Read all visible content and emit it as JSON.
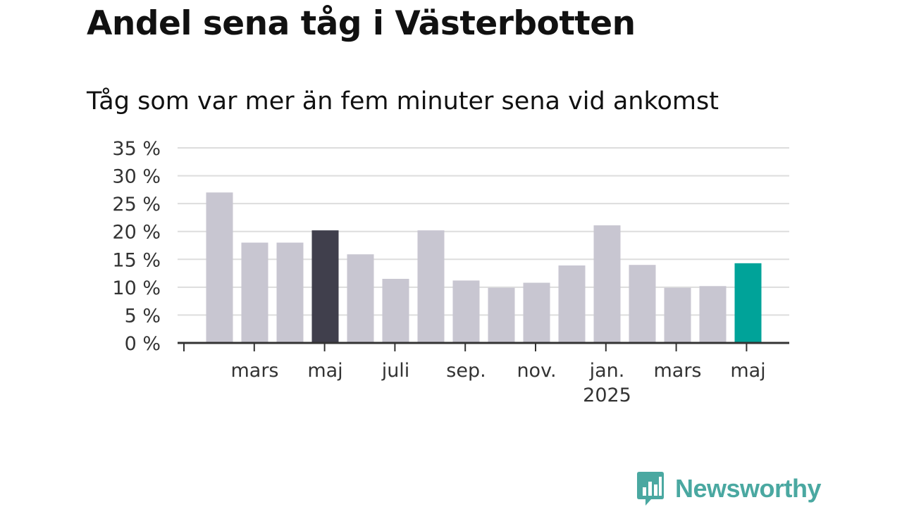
{
  "chart_data": {
    "type": "bar",
    "title": "Andel sena tåg i Västerbotten",
    "subtitle": "Tåg som var mer än fem minuter sena vid ankomst",
    "categories": [
      "2024-02",
      "2024-03",
      "2024-04",
      "2024-05",
      "2024-06",
      "2024-07",
      "2024-08",
      "2024-09",
      "2024-10",
      "2024-11",
      "2024-12",
      "2025-01",
      "2025-02",
      "2025-03",
      "2025-04",
      "2025-05"
    ],
    "values": [
      27.0,
      18.0,
      18.0,
      20.2,
      15.9,
      11.5,
      20.2,
      11.2,
      9.9,
      10.8,
      13.9,
      21.1,
      14.0,
      9.9,
      10.2,
      14.3
    ],
    "ylim": [
      0,
      35
    ],
    "yticks": [
      0,
      5,
      10,
      15,
      20,
      25,
      30,
      35
    ],
    "ytick_labels": [
      "0 %",
      "5 %",
      "10 %",
      "15 %",
      "20 %",
      "25 %",
      "30 %",
      "35 %"
    ],
    "xtick_labels": [
      {
        "category_index": 1,
        "lines": [
          "mars"
        ]
      },
      {
        "category_index": 3,
        "lines": [
          "maj"
        ]
      },
      {
        "category_index": 5,
        "lines": [
          "juli"
        ]
      },
      {
        "category_index": 7,
        "lines": [
          "sep."
        ]
      },
      {
        "category_index": 9,
        "lines": [
          "nov."
        ]
      },
      {
        "category_index": 11,
        "lines": [
          "jan.",
          "2025"
        ]
      },
      {
        "category_index": 13,
        "lines": [
          "mars"
        ]
      },
      {
        "category_index": 15,
        "lines": [
          "maj"
        ]
      }
    ],
    "xlabel": "",
    "ylabel": "",
    "grid": true,
    "legend": "none",
    "highlights": {
      "3": "#403f4c",
      "15": "#00a399"
    },
    "colors": {
      "bar": "#c8c6d1",
      "grid": "#dddddd",
      "axis": "#333333"
    }
  },
  "logo": {
    "text": "Newsworthy",
    "icon": "newsworthy-logo-icon",
    "color": "#4aa8a1"
  }
}
